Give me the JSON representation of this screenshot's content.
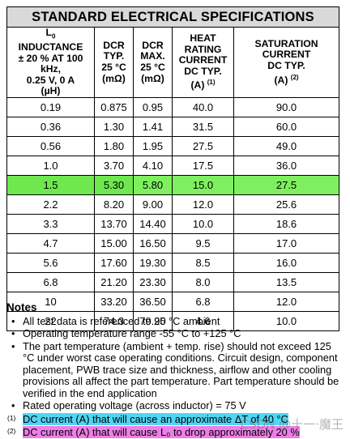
{
  "title": "STANDARD ELECTRICAL SPECIFICATIONS",
  "headers": {
    "inductance": {
      "sym": "L",
      "sym_sub": "0",
      "line1": "INDUCTANCE",
      "line2": "± 20 % AT 100 kHz,",
      "line3": "0.25 V, 0 A",
      "line4": "(µH)"
    },
    "dcr_typ": {
      "line1": "DCR",
      "line2": "TYP.",
      "line3": "25 °C",
      "line4": "(mΩ)"
    },
    "dcr_max": {
      "line1": "DCR",
      "line2": "MAX.",
      "line3": "25 °C",
      "line4": "(mΩ)"
    },
    "heat": {
      "line1": "HEAT",
      "line2": "RATING",
      "line3": "CURRENT",
      "line4": "DC TYP.",
      "line5": "(A)",
      "ref": "(1)"
    },
    "sat": {
      "line1": "SATURATION",
      "line2": "CURRENT",
      "line3": "DC TYP.",
      "line4": "(A)",
      "ref": "(2)"
    }
  },
  "rows": [
    [
      "0.19",
      "0.875",
      "0.95",
      "40.0",
      "90.0"
    ],
    [
      "0.36",
      "1.30",
      "1.41",
      "31.5",
      "60.0"
    ],
    [
      "0.56",
      "1.80",
      "1.95",
      "27.5",
      "49.0"
    ],
    [
      "1.0",
      "3.70",
      "4.10",
      "17.5",
      "36.0"
    ],
    [
      "1.5",
      "5.30",
      "5.80",
      "15.0",
      "27.5"
    ],
    [
      "2.2",
      "8.20",
      "9.00",
      "12.0",
      "25.6"
    ],
    [
      "3.3",
      "13.70",
      "14.40",
      "10.0",
      "18.6"
    ],
    [
      "4.7",
      "15.00",
      "16.50",
      "9.5",
      "17.0"
    ],
    [
      "5.6",
      "17.60",
      "19.30",
      "8.5",
      "16.0"
    ],
    [
      "6.8",
      "21.20",
      "23.30",
      "8.0",
      "13.5"
    ],
    [
      "10",
      "33.20",
      "36.50",
      "6.8",
      "12.0"
    ],
    [
      "22",
      "74.3",
      "79.90",
      "4.6",
      "10.0"
    ]
  ],
  "highlight_row_index": 4,
  "colors": {
    "highlight_row": "#7ef05f",
    "footnote1_bg": "#4fd6f5",
    "footnote2_bg": "#ee7ee8",
    "title_bg": "#d9d9d9"
  },
  "notes": {
    "title": "Notes",
    "bullets": [
      "All test data is referenced to 25 °C ambient",
      "Operating temperature range -55 °C to +125 °C",
      "The part temperature (ambient + temp. rise) should not exceed 125 °C under worst case operating conditions. Circuit design, component placement, PWB trace size and thickness, airflow and other cooling provisions all affect the part temperature. Part temperature should be verified in the end application",
      "Rated operating voltage (across inductor) = 75 V"
    ],
    "footnotes": [
      {
        "mark": "(1)",
        "text": "DC current (A) that will cause an approximate ΔT of 40 °C"
      },
      {
        "mark": "(2)",
        "text": "DC current (A) that will cause L₀ to drop approximately 20 %"
      }
    ]
  },
  "watermark": "CSDN @十一·魔王"
}
